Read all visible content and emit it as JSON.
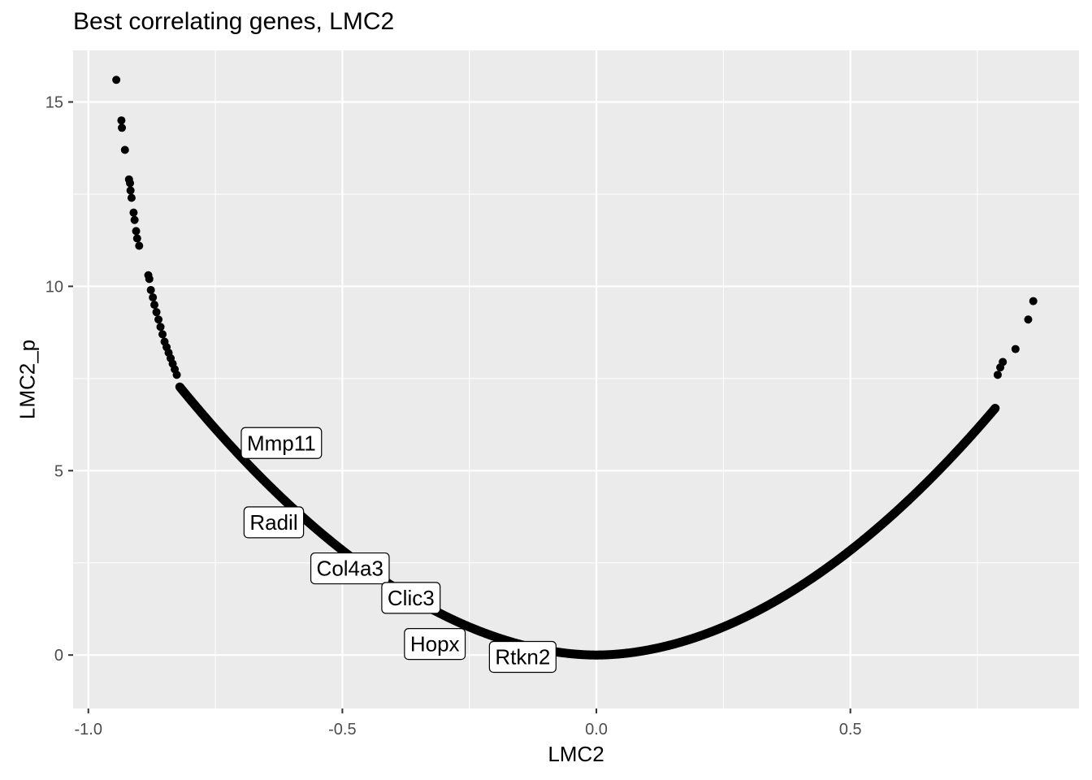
{
  "chart_data": {
    "type": "scatter",
    "title": "Best correlating genes, LMC2",
    "xlabel": "LMC2",
    "ylabel": "LMC2_p",
    "xlim": [
      -1.03,
      0.95
    ],
    "ylim": [
      -1.45,
      16.4
    ],
    "x_ticks": [
      -1.0,
      -0.5,
      0.0,
      0.5
    ],
    "x_tick_labels": [
      "-1.0",
      "-0.5",
      "0.0",
      "0.5"
    ],
    "y_ticks": [
      0,
      5,
      10,
      15
    ],
    "y_tick_labels": [
      "0",
      "5",
      "10",
      "15"
    ],
    "grid": true,
    "background": "#ebebeb",
    "grid_color": "#ffffff",
    "point_color": "#000000",
    "curve_description": "points follow -log10(p) vs correlation; ranges x -0.94 to 0.86",
    "curve": {
      "negative_branch_x_min": -0.82,
      "positive_branch_x_max": 0.785,
      "shape_a": 10.6,
      "shape_exp": 1.9
    },
    "outliers": [
      {
        "x": -0.945,
        "y": 15.6
      },
      {
        "x": -0.935,
        "y": 14.5
      },
      {
        "x": -0.934,
        "y": 14.3
      },
      {
        "x": -0.928,
        "y": 13.7
      },
      {
        "x": -0.92,
        "y": 12.9
      },
      {
        "x": -0.918,
        "y": 12.8
      },
      {
        "x": -0.917,
        "y": 12.6
      },
      {
        "x": -0.915,
        "y": 12.4
      },
      {
        "x": -0.911,
        "y": 12.0
      },
      {
        "x": -0.909,
        "y": 11.8
      },
      {
        "x": -0.906,
        "y": 11.5
      },
      {
        "x": -0.904,
        "y": 11.3
      },
      {
        "x": -0.9,
        "y": 11.1
      },
      {
        "x": -0.882,
        "y": 10.3
      },
      {
        "x": -0.88,
        "y": 10.2
      },
      {
        "x": -0.877,
        "y": 9.9
      },
      {
        "x": -0.873,
        "y": 9.7
      },
      {
        "x": -0.87,
        "y": 9.5
      },
      {
        "x": -0.866,
        "y": 9.3
      },
      {
        "x": -0.862,
        "y": 9.1
      },
      {
        "x": -0.858,
        "y": 8.9
      },
      {
        "x": -0.854,
        "y": 8.7
      },
      {
        "x": -0.85,
        "y": 8.5
      },
      {
        "x": -0.846,
        "y": 8.35
      },
      {
        "x": -0.842,
        "y": 8.2
      },
      {
        "x": -0.838,
        "y": 8.05
      },
      {
        "x": -0.834,
        "y": 7.9
      },
      {
        "x": -0.83,
        "y": 7.75
      },
      {
        "x": -0.826,
        "y": 7.6
      },
      {
        "x": 0.79,
        "y": 7.6
      },
      {
        "x": 0.795,
        "y": 7.8
      },
      {
        "x": 0.8,
        "y": 7.95
      },
      {
        "x": 0.825,
        "y": 8.3
      },
      {
        "x": 0.85,
        "y": 9.1
      },
      {
        "x": 0.86,
        "y": 9.6
      }
    ],
    "labeled_genes": [
      {
        "label": "Mmp11",
        "x": -0.62,
        "y": 5.75
      },
      {
        "label": "Radil",
        "x": -0.635,
        "y": 3.6
      },
      {
        "label": "Col4a3",
        "x": -0.485,
        "y": 2.35
      },
      {
        "label": "Clic3",
        "x": -0.365,
        "y": 1.55
      },
      {
        "label": "Hopx",
        "x": -0.318,
        "y": 0.3
      },
      {
        "label": "Rtkn2",
        "x": -0.145,
        "y": -0.05
      }
    ]
  }
}
